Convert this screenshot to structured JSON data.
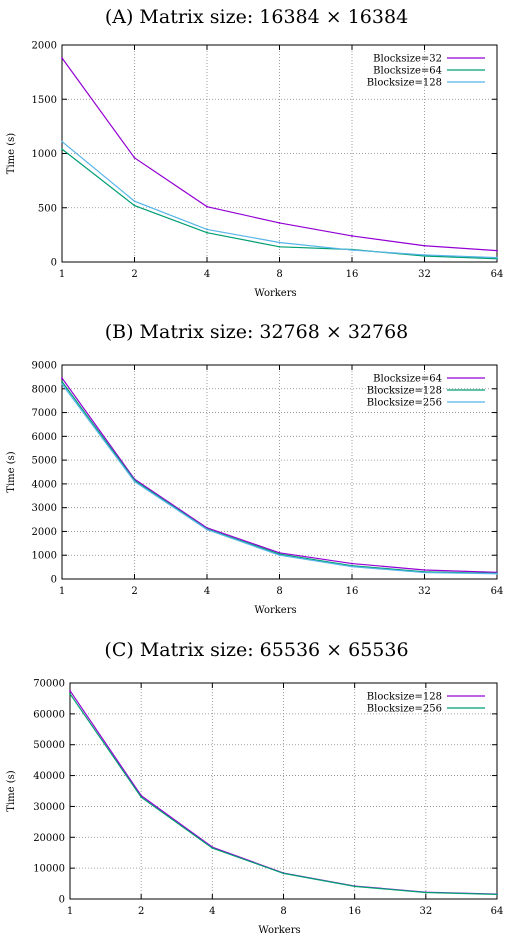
{
  "chart_data": [
    {
      "type": "line",
      "title": "(A) Matrix size: 16384 × 16384",
      "xlabel": "Workers",
      "ylabel": "Time (s)",
      "x": [
        1,
        2,
        4,
        8,
        16,
        32,
        64
      ],
      "x_scale": "log2",
      "ylim": [
        0,
        2000
      ],
      "yticks": [
        0,
        500,
        1000,
        1500,
        2000
      ],
      "grid": true,
      "legend_position": "top-right",
      "series": [
        {
          "name": "Blocksize=32",
          "color": "#9400d3",
          "values": [
            1880,
            960,
            510,
            360,
            240,
            150,
            105
          ]
        },
        {
          "name": "Blocksize=64",
          "color": "#009e73",
          "values": [
            1040,
            520,
            270,
            140,
            115,
            55,
            30
          ]
        },
        {
          "name": "Blocksize=128",
          "color": "#56b4e9",
          "values": [
            1110,
            560,
            300,
            180,
            110,
            65,
            40
          ]
        }
      ]
    },
    {
      "type": "line",
      "title": "(B) Matrix size: 32768 × 32768",
      "xlabel": "Workers",
      "ylabel": "Time (s)",
      "x": [
        1,
        2,
        4,
        8,
        16,
        32,
        64
      ],
      "x_scale": "log2",
      "ylim": [
        0,
        9000
      ],
      "yticks": [
        0,
        1000,
        2000,
        3000,
        4000,
        5000,
        6000,
        7000,
        8000,
        9000
      ],
      "grid": true,
      "legend_position": "top-right",
      "series": [
        {
          "name": "Blocksize=64",
          "color": "#9400d3",
          "values": [
            8450,
            4200,
            2150,
            1100,
            650,
            380,
            280
          ]
        },
        {
          "name": "Blocksize=128",
          "color": "#009e73",
          "values": [
            8300,
            4150,
            2100,
            1050,
            560,
            300,
            240
          ]
        },
        {
          "name": "Blocksize=256",
          "color": "#56b4e9",
          "values": [
            8200,
            4100,
            2080,
            1000,
            520,
            270,
            220
          ]
        }
      ]
    },
    {
      "type": "line",
      "title": "(C) Matrix size: 65536 × 65536",
      "xlabel": "Workers",
      "ylabel": "Time (s)",
      "x": [
        1,
        2,
        4,
        8,
        16,
        32,
        64
      ],
      "x_scale": "log2",
      "ylim": [
        0,
        70000
      ],
      "yticks": [
        0,
        10000,
        20000,
        30000,
        40000,
        50000,
        60000,
        70000
      ],
      "grid": true,
      "legend_position": "top-right",
      "series": [
        {
          "name": "Blocksize=128",
          "color": "#9400d3",
          "values": [
            67500,
            33500,
            16800,
            8400,
            4200,
            2200,
            1600
          ]
        },
        {
          "name": "Blocksize=256",
          "color": "#009e73",
          "values": [
            66500,
            33000,
            16500,
            8300,
            4100,
            2100,
            1500
          ]
        }
      ]
    }
  ]
}
